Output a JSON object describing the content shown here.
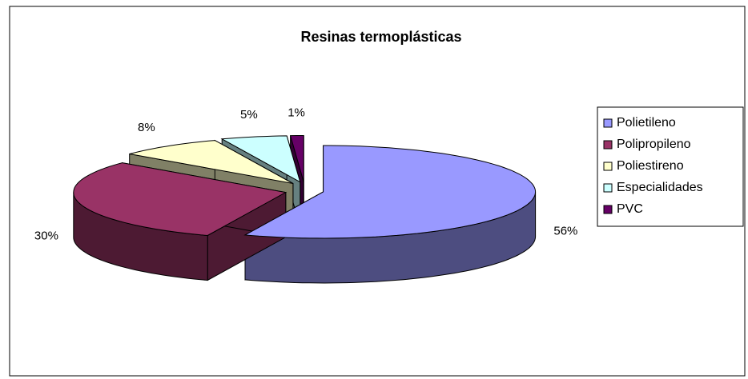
{
  "chart_data": {
    "type": "pie",
    "title": "Resinas termoplásticas",
    "categories": [
      "Polietileno",
      "Polipropileno",
      "Poliestireno",
      "Especialidades",
      "PVC"
    ],
    "values": [
      56,
      30,
      8,
      5,
      1
    ],
    "value_labels": [
      "56%",
      "30%",
      "8%",
      "5%",
      "1%"
    ],
    "colors": [
      "#9999ff",
      "#993366",
      "#ffffcc",
      "#ccffff",
      "#660066"
    ],
    "legend": "right"
  }
}
